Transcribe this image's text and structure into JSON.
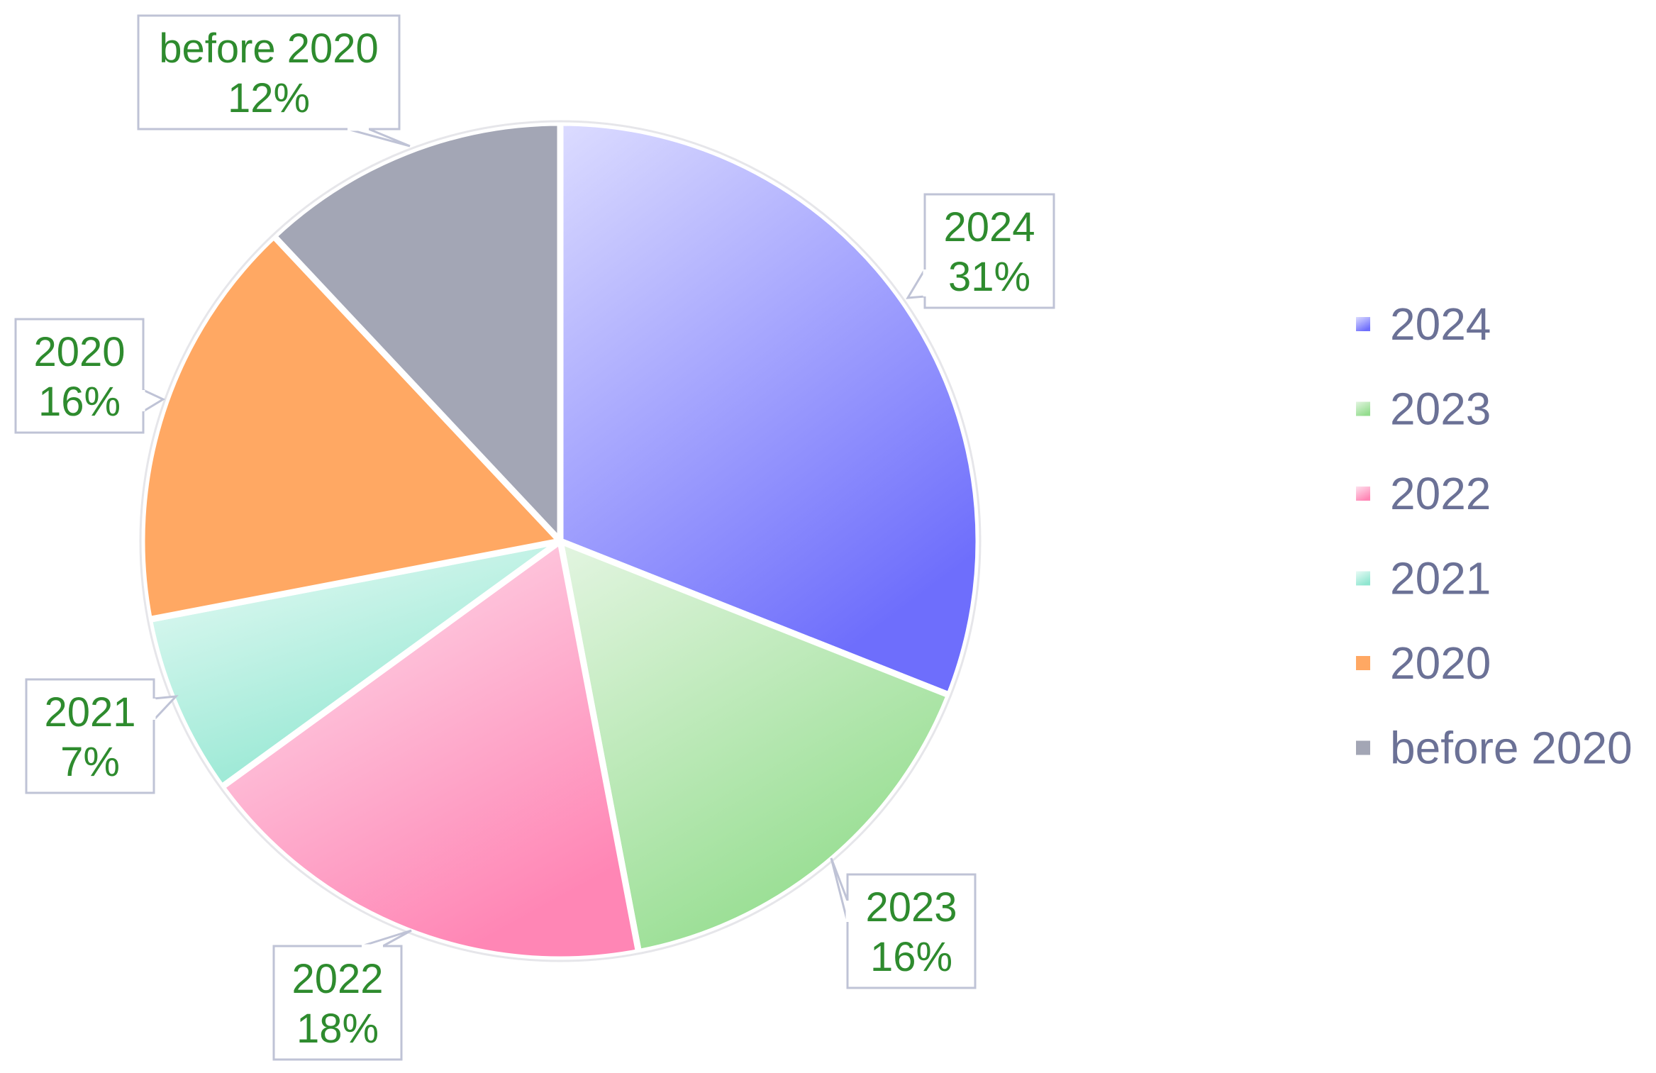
{
  "chart_data": {
    "type": "pie",
    "title": "",
    "legend_position": "right",
    "label_color": "#2e8b2e",
    "legend_text_color": "#6b7196",
    "slices": [
      {
        "label": "2024",
        "value": 31,
        "value_label": "31%",
        "color_light": "#dcdcff",
        "color_dark": "#6e6efc"
      },
      {
        "label": "2023",
        "value": 16,
        "value_label": "16%",
        "color_light": "#e3f5e1",
        "color_dark": "#94dd8e"
      },
      {
        "label": "2022",
        "value": 18,
        "value_label": "18%",
        "color_light": "#fde2ee",
        "color_dark": "#ff86b5"
      },
      {
        "label": "2021",
        "value": 7,
        "value_label": "7%",
        "color_light": "#e9fbf6",
        "color_dark": "#8fe6d0"
      },
      {
        "label": "2020",
        "value": 16,
        "value_label": "16%",
        "color_light": "#ffa863",
        "color_dark": "#ffa863"
      },
      {
        "label": "before 2020",
        "value": 12,
        "value_label": "12%",
        "color_light": "#a3a6b5",
        "color_dark": "#a3a6b5"
      }
    ]
  }
}
